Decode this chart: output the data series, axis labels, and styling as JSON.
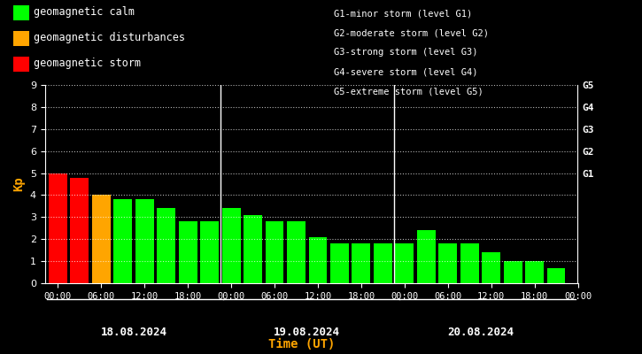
{
  "background_color": "#000000",
  "plot_bg_color": "#000000",
  "text_color": "#ffffff",
  "grid_color": "#ffffff",
  "xlabel": "Time (UT)",
  "xlabel_color": "#ffa500",
  "ylabel": "Kp",
  "ylabel_color": "#ffa500",
  "days": [
    "18.08.2024",
    "19.08.2024",
    "20.08.2024"
  ],
  "bar_values": [
    5.0,
    4.8,
    4.0,
    3.8,
    3.8,
    3.4,
    2.8,
    2.8,
    3.4,
    3.1,
    2.8,
    2.8,
    2.1,
    1.8,
    1.8,
    1.8,
    1.8,
    2.4,
    1.8,
    1.8,
    1.4,
    1.0,
    1.0,
    0.7
  ],
  "bar_colors": [
    "#ff0000",
    "#ff0000",
    "#ffa500",
    "#00ff00",
    "#00ff00",
    "#00ff00",
    "#00ff00",
    "#00ff00",
    "#00ff00",
    "#00ff00",
    "#00ff00",
    "#00ff00",
    "#00ff00",
    "#00ff00",
    "#00ff00",
    "#00ff00",
    "#00ff00",
    "#00ff00",
    "#00ff00",
    "#00ff00",
    "#00ff00",
    "#00ff00",
    "#00ff00",
    "#00ff00"
  ],
  "ylim": [
    0,
    9
  ],
  "yticks": [
    0,
    1,
    2,
    3,
    4,
    5,
    6,
    7,
    8,
    9
  ],
  "right_labels": [
    "G5",
    "G4",
    "G3",
    "G2",
    "G1"
  ],
  "right_label_yvals": [
    9,
    8,
    7,
    6,
    5
  ],
  "legend_items": [
    {
      "label": "geomagnetic calm",
      "color": "#00ff00"
    },
    {
      "label": "geomagnetic disturbances",
      "color": "#ffa500"
    },
    {
      "label": "geomagnetic storm",
      "color": "#ff0000"
    }
  ],
  "info_lines": [
    "G1-minor storm (level G1)",
    "G2-moderate storm (level G2)",
    "G3-strong storm (level G3)",
    "G4-severe storm (level G4)",
    "G5-extreme storm (level G5)"
  ],
  "xtick_labels_per_day": [
    "00:00",
    "06:00",
    "12:00",
    "18:00"
  ],
  "num_bars": 24,
  "bars_per_day": 8,
  "vline_positions": [
    8,
    16
  ]
}
